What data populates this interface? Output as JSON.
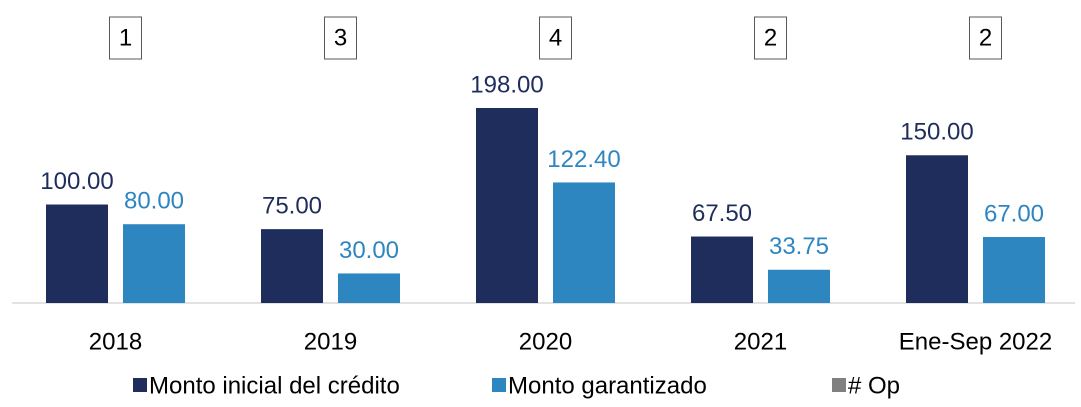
{
  "chart_data": {
    "type": "bar",
    "categories": [
      "2018",
      "2019",
      "2020",
      "2021",
      "Ene-Sep 2022"
    ],
    "series": [
      {
        "name": "Monto inicial del crédito",
        "color": "#1f2d5c",
        "values": [
          100,
          75,
          198,
          67.5,
          150
        ],
        "value_labels": [
          "100.00",
          "75.00",
          "198.00",
          "67.50",
          "150.00"
        ]
      },
      {
        "name": "Monto garantizado",
        "color": "#2e86c1",
        "values": [
          80,
          30,
          122.4,
          33.75,
          67
        ],
        "value_labels": [
          "80.00",
          "30.00",
          "122.40",
          "33.75",
          "67.00"
        ]
      },
      {
        "name": "# Op",
        "color": "#808080",
        "values": [
          1,
          3,
          4,
          2,
          2
        ]
      }
    ]
  }
}
